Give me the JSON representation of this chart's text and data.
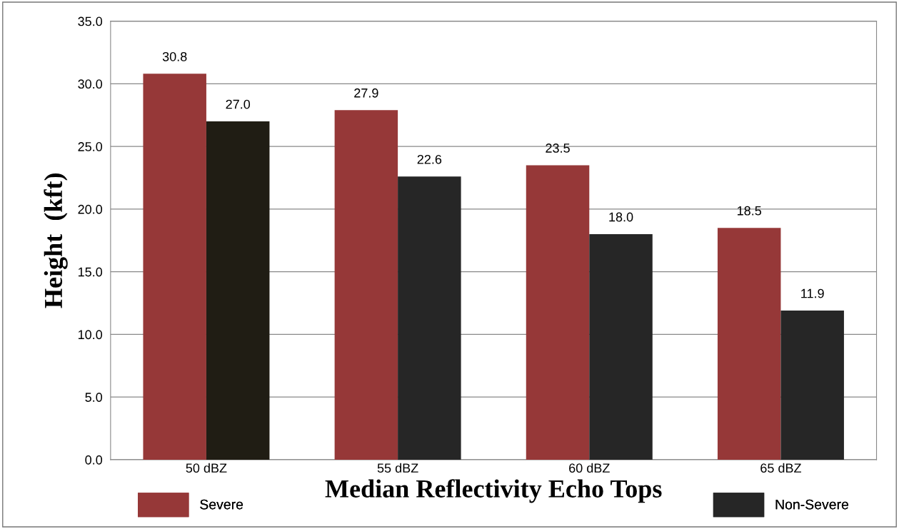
{
  "chart_data": {
    "type": "bar",
    "xlabel": "Median Reflectivity Echo Tops",
    "ylabel": "Height  (kft)",
    "categories": [
      "50 dBZ",
      "55 dBZ",
      "60 dBZ",
      "65 dBZ"
    ],
    "series": [
      {
        "name": "Severe",
        "color": "#963838",
        "values": [
          30.8,
          27.9,
          23.5,
          18.5
        ],
        "value_labels": [
          "30.8",
          "27.9",
          "23.5",
          "18.5"
        ]
      },
      {
        "name": "Non-Severe",
        "color": "#262626",
        "colors": [
          "#201d14",
          "#262626",
          "#262626",
          "#262626"
        ],
        "values": [
          27.0,
          22.6,
          18.0,
          11.9
        ],
        "value_labels": [
          "27.0",
          "22.6",
          "18.0",
          "11.9"
        ]
      }
    ],
    "ylim": [
      0,
      35
    ],
    "yticks": [
      {
        "value": 0,
        "label": "0.0"
      },
      {
        "value": 5,
        "label": "5.0"
      },
      {
        "value": 10,
        "label": "10.0"
      },
      {
        "value": 15,
        "label": "15.0"
      },
      {
        "value": 20,
        "label": "20.0"
      },
      {
        "value": 25,
        "label": "25.0"
      },
      {
        "value": 30,
        "label": "30.0"
      },
      {
        "value": 35,
        "label": "35.0"
      }
    ],
    "grid": "y",
    "legend": "bottom"
  }
}
